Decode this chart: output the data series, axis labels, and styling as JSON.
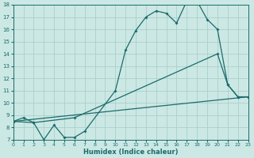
{
  "xlabel": "Humidex (Indice chaleur)",
  "xlim": [
    0,
    23
  ],
  "ylim": [
    7,
    18
  ],
  "xticks": [
    0,
    1,
    2,
    3,
    4,
    5,
    6,
    7,
    8,
    9,
    10,
    11,
    12,
    13,
    14,
    15,
    16,
    17,
    18,
    19,
    20,
    21,
    22,
    23
  ],
  "yticks": [
    7,
    8,
    9,
    10,
    11,
    12,
    13,
    14,
    15,
    16,
    17,
    18
  ],
  "bg_color": "#cce8e4",
  "grid_color": "#aacfca",
  "line_color": "#1a6b6b",
  "line1_x": [
    0,
    1,
    2,
    3,
    4,
    5,
    6,
    7,
    10,
    11,
    12,
    13,
    14,
    15,
    16,
    17,
    18,
    19,
    20,
    21,
    22,
    23
  ],
  "line1_y": [
    8.5,
    8.8,
    8.4,
    7.0,
    8.2,
    7.2,
    7.2,
    7.7,
    11.0,
    14.3,
    15.9,
    17.0,
    17.5,
    17.3,
    16.5,
    18.3,
    18.3,
    16.8,
    16.0,
    11.5,
    10.5,
    10.5
  ],
  "line2_x": [
    0,
    2,
    6,
    20,
    21,
    22,
    23
  ],
  "line2_y": [
    8.5,
    8.4,
    8.8,
    14.0,
    11.5,
    10.5,
    10.5
  ],
  "line3_x": [
    0,
    23
  ],
  "line3_y": [
    8.5,
    10.5
  ]
}
